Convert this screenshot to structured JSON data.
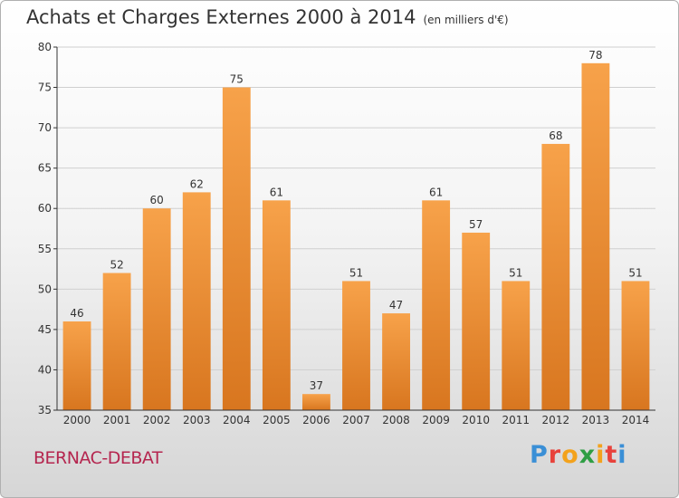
{
  "title": "Achats et Charges Externes 2000 à 2014",
  "unit": "(en milliers d'€)",
  "commune": "BERNAC-DEBAT",
  "logo_text": "Proxiti",
  "colors": {
    "bar_light": "#f7a24a",
    "bar_dark": "#d8761f",
    "commune": "#b5264f",
    "axis": "#333333",
    "grid": "#d0d0d0"
  },
  "chart_data": {
    "type": "bar",
    "categories": [
      "2000",
      "2001",
      "2002",
      "2003",
      "2004",
      "2005",
      "2006",
      "2007",
      "2008",
      "2009",
      "2010",
      "2011",
      "2012",
      "2013",
      "2014"
    ],
    "values": [
      46,
      52,
      60,
      62,
      75,
      61,
      37,
      51,
      47,
      61,
      57,
      51,
      68,
      78,
      51
    ],
    "title": "Achats et Charges Externes 2000 à 2014",
    "ylim": [
      35,
      80
    ],
    "yticks": [
      35,
      40,
      45,
      50,
      55,
      60,
      65,
      70,
      75,
      80
    ],
    "grid": true
  }
}
